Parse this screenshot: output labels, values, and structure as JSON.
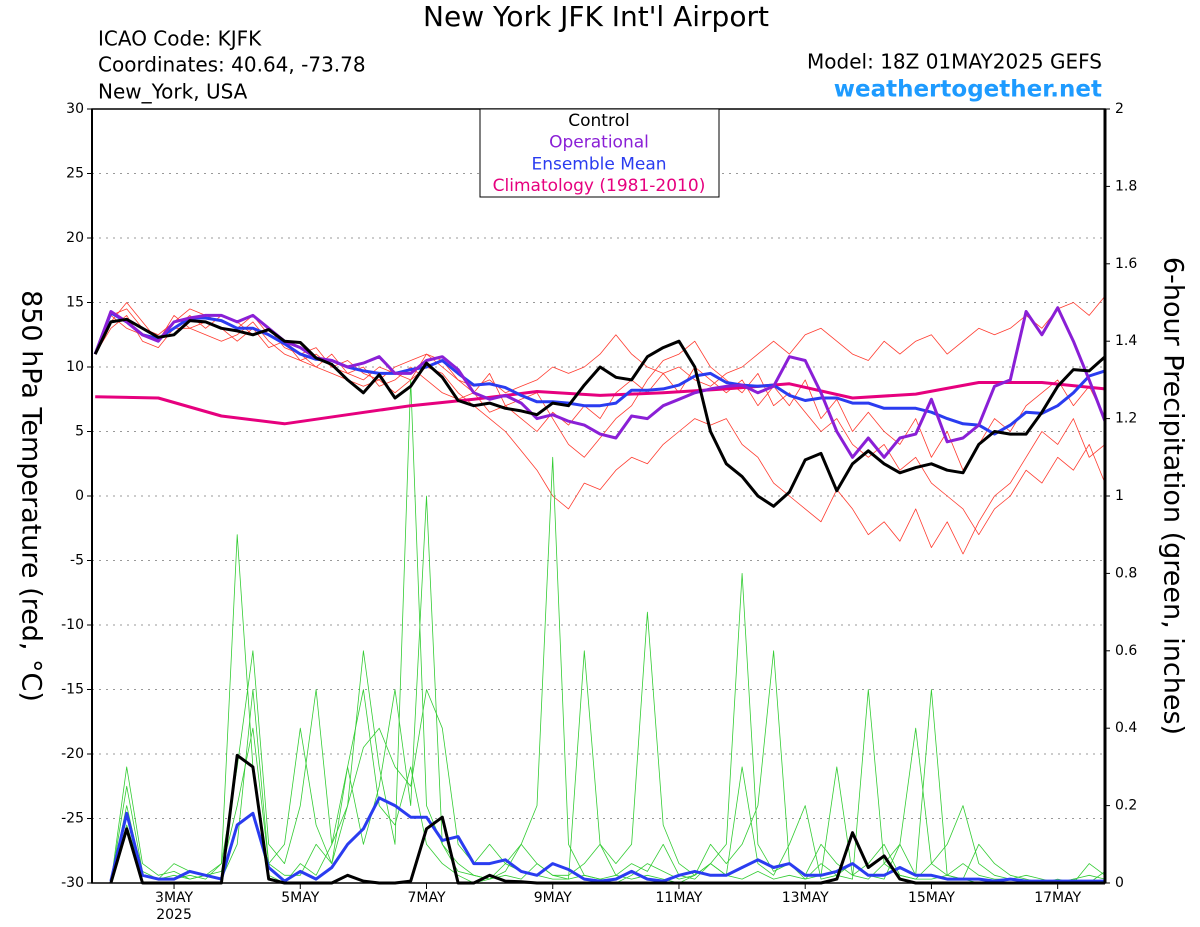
{
  "chart_data": {
    "type": "line",
    "title": "New York JFK Int'l Airport",
    "icao": "ICAO Code: KJFK",
    "coordinates": "Coordinates: 40.64, -73.78",
    "location": "New_York, USA",
    "model": "Model: 18Z 01MAY2025 GEFS",
    "site": "weathertogether.net",
    "ylabel": "850 hPa Temperature (red, °C)",
    "y2label": "6-hour Precipitation (green, inches)",
    "grid": true,
    "xlim": [
      1.7,
      17.75
    ],
    "xticks": [
      {
        "value": 3,
        "label": "3MAY"
      },
      {
        "value": 5,
        "label": "5MAY"
      },
      {
        "value": 7,
        "label": "7MAY"
      },
      {
        "value": 9,
        "label": "9MAY"
      },
      {
        "value": 11,
        "label": "11MAY"
      },
      {
        "value": 13,
        "label": "13MAY"
      },
      {
        "value": 15,
        "label": "15MAY"
      },
      {
        "value": 17,
        "label": "17MAY"
      }
    ],
    "xtick_sublabel": "2025",
    "ylim": [
      -30,
      30
    ],
    "yticks": [
      -30,
      -25,
      -20,
      -15,
      -10,
      -5,
      0,
      5,
      10,
      15,
      20,
      25,
      30
    ],
    "y2lim": [
      0,
      2
    ],
    "y2ticks": [
      0,
      0.2,
      0.4,
      0.6,
      0.8,
      1,
      1.2,
      1.4,
      1.6,
      1.8,
      2
    ],
    "x": [
      1.75,
      2,
      2.25,
      2.5,
      2.75,
      3,
      3.25,
      3.5,
      3.75,
      4,
      4.25,
      4.5,
      4.75,
      5,
      5.25,
      5.5,
      5.75,
      6,
      6.25,
      6.5,
      6.75,
      7,
      7.25,
      7.5,
      7.75,
      8,
      8.25,
      8.5,
      8.75,
      9,
      9.25,
      9.5,
      9.75,
      10,
      10.25,
      10.5,
      10.75,
      11,
      11.25,
      11.5,
      11.75,
      12,
      12.25,
      12.5,
      12.75,
      13,
      13.25,
      13.5,
      13.75,
      14,
      14.25,
      14.5,
      14.75,
      15,
      15.25,
      15.5,
      15.75,
      16,
      16.25,
      16.5,
      16.75,
      17,
      17.25,
      17.5,
      17.75
    ],
    "series": [
      {
        "name": "Control",
        "color": "#000000",
        "width": 3,
        "values": [
          11,
          13.5,
          13.7,
          13,
          12.3,
          12.5,
          13.6,
          13.5,
          13,
          12.8,
          12.5,
          12.9,
          12,
          11.9,
          10.7,
          10.2,
          9,
          8,
          9.4,
          7.6,
          8.5,
          10.3,
          9.2,
          7.4,
          7,
          7.2,
          6.8,
          6.6,
          6.3,
          7.2,
          7,
          8.6,
          10,
          9.2,
          9,
          10.8,
          11.5,
          12,
          10,
          5,
          2.5,
          1.5,
          0,
          -0.8,
          0.3,
          2.8,
          3.3,
          0.4,
          2.5,
          3.5,
          2.5,
          1.8,
          2.2,
          2.5,
          2,
          1.8,
          4,
          5,
          4.8,
          4.8,
          6.5,
          8.5,
          9.8,
          9.7,
          10.8
        ]
      },
      {
        "name": "Operational",
        "color": "#8a1fd6",
        "width": 3,
        "values": [
          11,
          14.3,
          13.5,
          12.5,
          12,
          13.5,
          13.8,
          14,
          14,
          13.5,
          14,
          13,
          12,
          11.5,
          10.7,
          10.5,
          10,
          10.3,
          10.8,
          9.5,
          9.5,
          10.5,
          10.8,
          9.8,
          8,
          7.5,
          7.8,
          7.2,
          6,
          6.3,
          5.8,
          5.5,
          4.8,
          4.5,
          6.2,
          6,
          7,
          7.5,
          8,
          8.3,
          8.5,
          8.6,
          8,
          8.5,
          10.8,
          10.5,
          8,
          5,
          3,
          4.5,
          3,
          4.5,
          4.8,
          7.5,
          4.2,
          4.5,
          5.5,
          8.5,
          9,
          14.3,
          12.5,
          14.6,
          12,
          9,
          5.8
        ]
      },
      {
        "name": "Ensemble Mean",
        "color": "#2a3cf0",
        "width": 3,
        "values": [
          11,
          14.2,
          13.5,
          12.5,
          12.2,
          13,
          13.8,
          13.8,
          13.6,
          13,
          13,
          12.5,
          11.8,
          11,
          10.6,
          10.5,
          10,
          9.7,
          9.5,
          9.5,
          9.8,
          10,
          10.5,
          9.5,
          8.6,
          8.7,
          8.4,
          7.8,
          7.3,
          7.3,
          7.2,
          7,
          7,
          7.2,
          8.2,
          8.2,
          8.3,
          8.6,
          9.3,
          9.5,
          8.8,
          8.6,
          8.5,
          8.6,
          7.8,
          7.4,
          7.6,
          7.6,
          7.2,
          7.2,
          6.8,
          6.8,
          6.8,
          6.5,
          6,
          5.6,
          5.5,
          4.8,
          5.5,
          6.5,
          6.4,
          7,
          8,
          9.3,
          9.7
        ]
      },
      {
        "name": "Climatology (1981-2010)",
        "color": "#e6007e",
        "width": 3,
        "x": [
          1.75,
          2.75,
          3.75,
          4.75,
          5.75,
          6.75,
          7.75,
          8.75,
          9.75,
          10.75,
          11.75,
          12.75,
          13.75,
          14.75,
          15.75,
          16.75,
          17.75
        ],
        "values": [
          7.7,
          7.6,
          6.2,
          5.6,
          6.3,
          7,
          7.5,
          8.1,
          7.8,
          8,
          8.3,
          8.7,
          7.6,
          7.9,
          8.8,
          8.8,
          8.3
        ]
      },
      {
        "color": "#ff3b2f",
        "width": 0.8,
        "values": [
          11,
          14,
          14.5,
          13,
          12.5,
          13.5,
          14.5,
          14,
          13.5,
          13,
          14,
          12.5,
          12,
          11,
          11.5,
          10,
          10.5,
          9.5,
          9,
          10,
          10.5,
          11,
          10,
          9,
          8.5,
          9,
          8,
          8.5,
          9,
          10,
          9.5,
          10,
          11,
          12.5,
          11,
          10,
          9.5,
          10,
          9,
          8.5,
          9.5,
          10,
          11,
          12,
          11,
          12.5,
          13,
          12,
          11,
          10.5,
          12,
          11,
          12,
          12.5,
          11,
          12,
          13,
          12.5,
          13,
          14,
          13,
          14.5,
          15,
          14,
          15.5
        ]
      },
      {
        "color": "#ff3b2f",
        "width": 0.8,
        "values": [
          11,
          13,
          14,
          12,
          11.5,
          13,
          13,
          12.5,
          12,
          12.5,
          13.5,
          12,
          11,
          10.5,
          10,
          9.5,
          9,
          8.5,
          9,
          8,
          9,
          10,
          9.5,
          8,
          7,
          6,
          5,
          3.5,
          2,
          0,
          -1,
          1,
          0.5,
          2,
          3,
          2.5,
          4,
          5,
          6,
          5.5,
          6,
          4,
          3,
          1,
          0,
          -1,
          -2,
          0.5,
          -1,
          -3,
          -2,
          -3.5,
          -1,
          -4,
          -2,
          -4.5,
          -2,
          0,
          1,
          3,
          5,
          4,
          6,
          3,
          4
        ]
      },
      {
        "color": "#ff3b2f",
        "width": 0.8,
        "values": [
          11,
          13.5,
          15,
          13.5,
          12,
          14,
          13,
          13.5,
          13,
          12,
          13,
          11.5,
          12,
          10.5,
          11,
          10,
          9.5,
          10,
          8.5,
          9,
          10,
          9,
          8,
          7.5,
          8,
          6.5,
          7,
          6,
          5,
          6.5,
          5.5,
          7,
          6,
          8,
          9,
          8,
          9.5,
          8,
          10,
          9,
          8,
          9,
          7,
          8.5,
          7,
          9,
          6,
          7.5,
          5,
          6.5,
          5,
          4,
          6,
          3,
          5,
          2,
          4,
          6,
          5,
          7,
          8,
          9,
          7,
          8.5,
          6
        ]
      },
      {
        "color": "#ff3b2f",
        "width": 0.8,
        "values": [
          11,
          14,
          13,
          12.5,
          12,
          13,
          14,
          13,
          14,
          13.5,
          12.5,
          13,
          11.5,
          11,
          10,
          11,
          9.5,
          9,
          10,
          9.5,
          9,
          11,
          10.5,
          9,
          8,
          9.5,
          7,
          7.5,
          8,
          6,
          4,
          3,
          4.5,
          6,
          7,
          9,
          10.5,
          11,
          12,
          10,
          9,
          8,
          9.5,
          7,
          8,
          6.5,
          5,
          6,
          4,
          3,
          4,
          2,
          3,
          1,
          0,
          -1,
          -3,
          -1,
          0,
          2,
          1,
          3,
          2,
          4,
          1
        ]
      },
      {
        "color": "#33cc33",
        "width": 0.8,
        "axis": "y2",
        "values": [
          null,
          0.01,
          0.15,
          0.02,
          0.01,
          0.01,
          0.02,
          0.01,
          0.05,
          0.9,
          0.3,
          0.02,
          0,
          0.05,
          0.02,
          0.1,
          0.3,
          0.5,
          0.2,
          0.15,
          0.3,
          0.1,
          0.05,
          0.02,
          0,
          0.01,
          0.02,
          0.01,
          0.05,
          0.02,
          0.01,
          0.6,
          0.1,
          0.02,
          0.01,
          0.02,
          0.01,
          0,
          0.02,
          0.05,
          0.02,
          0.01,
          0.03,
          0.01,
          0.02,
          0.01,
          0.05,
          0.02,
          0.01,
          0.5,
          0.05,
          0.02,
          0.01,
          0.01,
          0.02,
          0.01,
          0,
          0,
          0.01,
          0,
          0,
          0,
          0.01,
          0,
          0
        ]
      },
      {
        "color": "#33cc33",
        "width": 0.8,
        "axis": "y2",
        "values": [
          null,
          0,
          0.3,
          0.05,
          0.02,
          0.03,
          0.01,
          0.02,
          0.01,
          0.1,
          0.5,
          0.05,
          0.02,
          0.02,
          0.1,
          0.05,
          0.2,
          0.6,
          0.3,
          0.1,
          1.3,
          0.2,
          0.1,
          0.03,
          0.02,
          0.01,
          0.05,
          0.03,
          0.02,
          0.01,
          0.01,
          0.02,
          0.01,
          0,
          0.02,
          0.05,
          0.03,
          0.01,
          0.02,
          0.05,
          0.1,
          0.8,
          0.1,
          0.03,
          0.05,
          0.01,
          0.02,
          0.3,
          0.02,
          0.01,
          0.05,
          0.1,
          0.02,
          0.5,
          0.02,
          0.05,
          0.02,
          0.01,
          0.01,
          0.02,
          0.01,
          0,
          0,
          0,
          0.03
        ]
      },
      {
        "color": "#33cc33",
        "width": 0.8,
        "axis": "y2",
        "values": [
          null,
          0,
          0.2,
          0.02,
          0.01,
          0.05,
          0.03,
          0.02,
          0.03,
          0.2,
          0.4,
          0.05,
          0.1,
          0.4,
          0.15,
          0.05,
          0.3,
          0.1,
          0.25,
          0.5,
          0.2,
          1.0,
          0.1,
          0.05,
          0.02,
          0.01,
          0.03,
          0.1,
          0.2,
          1.1,
          0.1,
          0.02,
          0.01,
          0.02,
          0.05,
          0.03,
          0.1,
          0.02,
          0.01,
          0.05,
          0.02,
          0.3,
          0.05,
          0.02,
          0.1,
          0.2,
          0.01,
          0.02,
          0.05,
          0.02,
          0.01,
          0.1,
          0.4,
          0.05,
          0.02,
          0.01,
          0.1,
          0.05,
          0.02,
          0.01,
          0,
          0.01,
          0,
          0.05,
          0.02
        ]
      },
      {
        "color": "#33cc33",
        "width": 0.8,
        "axis": "y2",
        "values": [
          null,
          0,
          0.25,
          0.03,
          0.01,
          0.02,
          0.01,
          0.02,
          0.05,
          0.3,
          0.6,
          0.1,
          0.05,
          0.2,
          0.5,
          0.1,
          0.2,
          0.35,
          0.4,
          0.3,
          0.25,
          0.5,
          0.4,
          0.1,
          0.05,
          0.1,
          0.05,
          0.1,
          0.05,
          0.02,
          0.02,
          0.05,
          0.1,
          0.05,
          0.1,
          0.7,
          0.15,
          0.05,
          0.02,
          0.1,
          0.05,
          0.1,
          0.2,
          0.6,
          0.05,
          0.02,
          0.1,
          0.05,
          0.02,
          0.05,
          0.1,
          0.02,
          0.01,
          0.05,
          0.1,
          0.2,
          0.05,
          0.02,
          0.01,
          0,
          0,
          0,
          0.01,
          0.02,
          0.01
        ]
      },
      {
        "color": "#2a3cf0",
        "width": 3,
        "axis": "y2",
        "values": [
          null,
          0.005,
          0.18,
          0.02,
          0.01,
          0.01,
          0.03,
          0.02,
          0.01,
          0.15,
          0.18,
          0.04,
          0.005,
          0.03,
          0.01,
          0.04,
          0.1,
          0.14,
          0.22,
          0.2,
          0.17,
          0.17,
          0.11,
          0.12,
          0.05,
          0.05,
          0.06,
          0.03,
          0.02,
          0.05,
          0.035,
          0.01,
          0.005,
          0.01,
          0.03,
          0.01,
          0.005,
          0.02,
          0.03,
          0.02,
          0.02,
          0.04,
          0.06,
          0.04,
          0.05,
          0.02,
          0.02,
          0.03,
          0.05,
          0.02,
          0.02,
          0.04,
          0.02,
          0.02,
          0.01,
          0.01,
          0.01,
          0.005,
          0.01,
          0.005,
          0.005,
          0.005,
          0.005,
          0.005,
          0.005
        ]
      },
      {
        "color": "#000000",
        "width": 3,
        "axis": "y2",
        "values": [
          null,
          0,
          0.14,
          0,
          0,
          0,
          0,
          0,
          0,
          0.33,
          0.3,
          0.01,
          0,
          0,
          0,
          0,
          0.02,
          0.005,
          0,
          0,
          0.005,
          0.14,
          0.17,
          0,
          0,
          0.02,
          0.005,
          0.003,
          0,
          0,
          0,
          0,
          0,
          0,
          0,
          0,
          0,
          0,
          0,
          0,
          0,
          0,
          0,
          0,
          0,
          0,
          0,
          0.01,
          0.13,
          0.04,
          0.07,
          0.01,
          0,
          0,
          0,
          0,
          0,
          0,
          0,
          0,
          0,
          0,
          0,
          0,
          0
        ]
      }
    ]
  }
}
